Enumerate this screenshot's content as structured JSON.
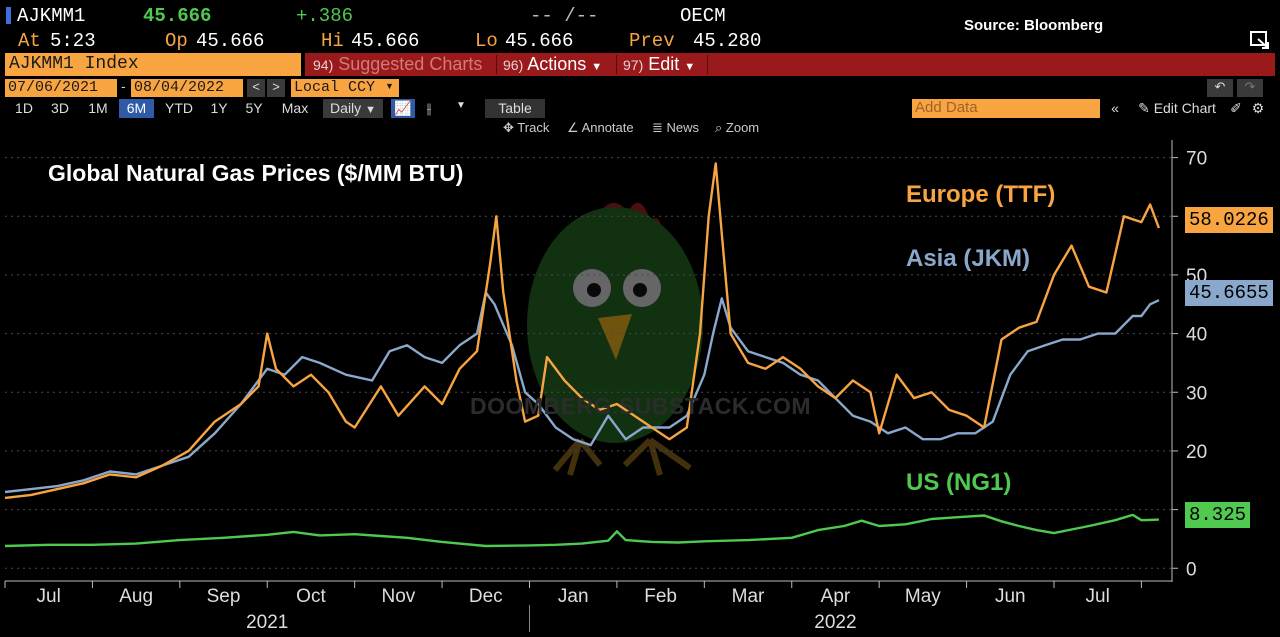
{
  "header": {
    "ticker": "AJKMM1",
    "last": "45.666",
    "change": "+.386",
    "bidask": "-- /--",
    "source_code": "OECM",
    "at_label": "At",
    "at_value": "5:23",
    "op_label": "Op",
    "op_value": "45.666",
    "hi_label": "Hi",
    "hi_value": "45.666",
    "lo_label": "Lo",
    "lo_value": "45.666",
    "prev_label": "Prev",
    "prev_value": "45.280"
  },
  "source_note": "Source: Bloomberg",
  "toolbar": {
    "security": "AJKMM1 Index",
    "menus": [
      {
        "num": "94)",
        "label": "Suggested Charts"
      },
      {
        "num": "96)",
        "label": "Actions"
      },
      {
        "num": "97)",
        "label": "Edit"
      }
    ],
    "start_date": "07/06/2021",
    "end_date": "08/04/2022",
    "currency": "Local CCY",
    "timeframes": [
      "1D",
      "3D",
      "1M",
      "6M",
      "YTD",
      "1Y",
      "5Y",
      "Max"
    ],
    "active_timeframe": "6M",
    "frequency": "Daily",
    "table_label": "Table",
    "add_data_placeholder": "Add Data",
    "edit_chart_label": "Edit Chart",
    "tools": [
      "Track",
      "Annotate",
      "News",
      "Zoom"
    ]
  },
  "watermark": "DOOMBERG.SUBSTACK.COM",
  "chart_data": {
    "type": "line",
    "title": "Global Natural Gas Prices ($/MM BTU)",
    "x_unit": "month index from 2021-07-01",
    "xlim": [
      0,
      13.35
    ],
    "ylim": [
      -2,
      73
    ],
    "y_ticks": [
      0,
      10,
      20,
      30,
      40,
      50,
      60,
      70
    ],
    "x_tick_labels": [
      {
        "x": 0.5,
        "label": "Jul"
      },
      {
        "x": 1.5,
        "label": "Aug"
      },
      {
        "x": 2.5,
        "label": "Sep"
      },
      {
        "x": 3.5,
        "label": "Oct"
      },
      {
        "x": 4.5,
        "label": "Nov"
      },
      {
        "x": 5.5,
        "label": "Dec"
      },
      {
        "x": 6.5,
        "label": "Jan"
      },
      {
        "x": 7.5,
        "label": "Feb"
      },
      {
        "x": 8.5,
        "label": "Mar"
      },
      {
        "x": 9.5,
        "label": "Apr"
      },
      {
        "x": 10.5,
        "label": "May"
      },
      {
        "x": 11.5,
        "label": "Jun"
      },
      {
        "x": 12.5,
        "label": "Jul"
      }
    ],
    "years": [
      {
        "x": 3,
        "label": "2021"
      },
      {
        "x": 9.5,
        "label": "2022"
      }
    ],
    "grid": "horizontal dashed",
    "series": [
      {
        "name": "Europe (TTF)",
        "color": "#f7a441",
        "last_value": "58.0226",
        "points": [
          [
            0,
            12
          ],
          [
            0.3,
            12.5
          ],
          [
            0.6,
            13.5
          ],
          [
            0.9,
            14.5
          ],
          [
            1.2,
            16
          ],
          [
            1.5,
            15.5
          ],
          [
            1.8,
            17.5
          ],
          [
            2.1,
            20
          ],
          [
            2.4,
            25
          ],
          [
            2.7,
            28
          ],
          [
            2.9,
            31
          ],
          [
            3.0,
            40
          ],
          [
            3.1,
            34
          ],
          [
            3.3,
            31
          ],
          [
            3.5,
            33
          ],
          [
            3.7,
            30
          ],
          [
            3.9,
            25
          ],
          [
            4.0,
            24
          ],
          [
            4.3,
            31
          ],
          [
            4.5,
            26
          ],
          [
            4.8,
            31
          ],
          [
            5.0,
            28
          ],
          [
            5.2,
            34
          ],
          [
            5.4,
            37
          ],
          [
            5.55,
            52
          ],
          [
            5.62,
            60
          ],
          [
            5.7,
            47
          ],
          [
            5.85,
            32
          ],
          [
            5.95,
            25
          ],
          [
            6.1,
            26
          ],
          [
            6.2,
            36
          ],
          [
            6.4,
            32
          ],
          [
            6.6,
            29
          ],
          [
            6.8,
            27
          ],
          [
            7.0,
            28
          ],
          [
            7.3,
            25
          ],
          [
            7.6,
            22
          ],
          [
            7.8,
            24
          ],
          [
            7.95,
            40
          ],
          [
            8.05,
            60
          ],
          [
            8.13,
            69
          ],
          [
            8.2,
            57
          ],
          [
            8.3,
            40
          ],
          [
            8.5,
            35
          ],
          [
            8.7,
            34
          ],
          [
            8.9,
            36
          ],
          [
            9.1,
            34
          ],
          [
            9.3,
            31
          ],
          [
            9.5,
            29
          ],
          [
            9.7,
            32
          ],
          [
            9.9,
            30
          ],
          [
            10.0,
            23
          ],
          [
            10.2,
            33
          ],
          [
            10.4,
            29
          ],
          [
            10.6,
            30
          ],
          [
            10.8,
            27
          ],
          [
            11.0,
            26
          ],
          [
            11.2,
            24
          ],
          [
            11.4,
            39
          ],
          [
            11.6,
            41
          ],
          [
            11.8,
            42
          ],
          [
            12.0,
            50
          ],
          [
            12.2,
            55
          ],
          [
            12.4,
            48
          ],
          [
            12.6,
            47
          ],
          [
            12.8,
            60
          ],
          [
            13.0,
            59
          ],
          [
            13.1,
            62
          ],
          [
            13.2,
            58
          ]
        ]
      },
      {
        "name": "Asia (JKM)",
        "color": "#8aa8cc",
        "last_value": "45.6655",
        "points": [
          [
            0,
            13
          ],
          [
            0.3,
            13.5
          ],
          [
            0.6,
            14
          ],
          [
            0.9,
            15
          ],
          [
            1.2,
            16.5
          ],
          [
            1.5,
            16
          ],
          [
            1.8,
            17.5
          ],
          [
            2.1,
            19
          ],
          [
            2.4,
            23
          ],
          [
            2.7,
            28
          ],
          [
            3.0,
            34
          ],
          [
            3.2,
            33
          ],
          [
            3.4,
            36
          ],
          [
            3.6,
            35
          ],
          [
            3.9,
            33
          ],
          [
            4.2,
            32
          ],
          [
            4.4,
            37
          ],
          [
            4.6,
            38
          ],
          [
            4.8,
            36
          ],
          [
            5.0,
            35
          ],
          [
            5.2,
            38
          ],
          [
            5.4,
            40
          ],
          [
            5.5,
            47
          ],
          [
            5.6,
            45
          ],
          [
            5.8,
            38
          ],
          [
            5.95,
            30
          ],
          [
            6.1,
            28
          ],
          [
            6.3,
            24
          ],
          [
            6.5,
            22
          ],
          [
            6.7,
            21
          ],
          [
            6.9,
            26
          ],
          [
            7.1,
            22
          ],
          [
            7.3,
            24
          ],
          [
            7.6,
            24
          ],
          [
            7.8,
            26
          ],
          [
            8.0,
            33
          ],
          [
            8.1,
            40
          ],
          [
            8.2,
            46
          ],
          [
            8.3,
            41
          ],
          [
            8.5,
            37
          ],
          [
            8.7,
            36
          ],
          [
            8.9,
            35
          ],
          [
            9.1,
            33
          ],
          [
            9.3,
            32
          ],
          [
            9.5,
            29
          ],
          [
            9.7,
            26
          ],
          [
            9.9,
            25
          ],
          [
            10.1,
            23
          ],
          [
            10.3,
            24
          ],
          [
            10.5,
            22
          ],
          [
            10.7,
            22
          ],
          [
            10.9,
            23
          ],
          [
            11.1,
            23
          ],
          [
            11.3,
            25
          ],
          [
            11.5,
            33
          ],
          [
            11.7,
            37
          ],
          [
            11.9,
            38
          ],
          [
            12.1,
            39
          ],
          [
            12.3,
            39
          ],
          [
            12.5,
            40
          ],
          [
            12.7,
            40
          ],
          [
            12.9,
            43
          ],
          [
            13.0,
            43
          ],
          [
            13.1,
            45
          ],
          [
            13.2,
            45.7
          ]
        ]
      },
      {
        "name": "US (NG1)",
        "color": "#4fc94f",
        "last_value": "8.325",
        "points": [
          [
            0,
            3.8
          ],
          [
            0.5,
            4
          ],
          [
            1.0,
            4.0
          ],
          [
            1.5,
            4.2
          ],
          [
            2.0,
            4.8
          ],
          [
            2.5,
            5.2
          ],
          [
            3.0,
            5.7
          ],
          [
            3.3,
            6.2
          ],
          [
            3.6,
            5.6
          ],
          [
            4.0,
            5.8
          ],
          [
            4.3,
            5.5
          ],
          [
            4.6,
            5.2
          ],
          [
            5.0,
            4.5
          ],
          [
            5.5,
            3.8
          ],
          [
            6.0,
            3.9
          ],
          [
            6.3,
            4.0
          ],
          [
            6.6,
            4.2
          ],
          [
            6.9,
            4.7
          ],
          [
            7.0,
            6.3
          ],
          [
            7.1,
            4.8
          ],
          [
            7.4,
            4.5
          ],
          [
            7.7,
            4.4
          ],
          [
            8.0,
            4.6
          ],
          [
            8.5,
            4.8
          ],
          [
            9.0,
            5.2
          ],
          [
            9.3,
            6.5
          ],
          [
            9.6,
            7.2
          ],
          [
            9.8,
            8.1
          ],
          [
            10.0,
            7.2
          ],
          [
            10.3,
            7.5
          ],
          [
            10.6,
            8.4
          ],
          [
            10.9,
            8.7
          ],
          [
            11.2,
            9.0
          ],
          [
            11.4,
            8.0
          ],
          [
            11.6,
            7.2
          ],
          [
            11.8,
            6.5
          ],
          [
            12.0,
            6.0
          ],
          [
            12.2,
            6.6
          ],
          [
            12.4,
            7.2
          ],
          [
            12.7,
            8.2
          ],
          [
            12.9,
            9.1
          ],
          [
            13.0,
            8.2
          ],
          [
            13.2,
            8.3
          ]
        ]
      }
    ]
  }
}
